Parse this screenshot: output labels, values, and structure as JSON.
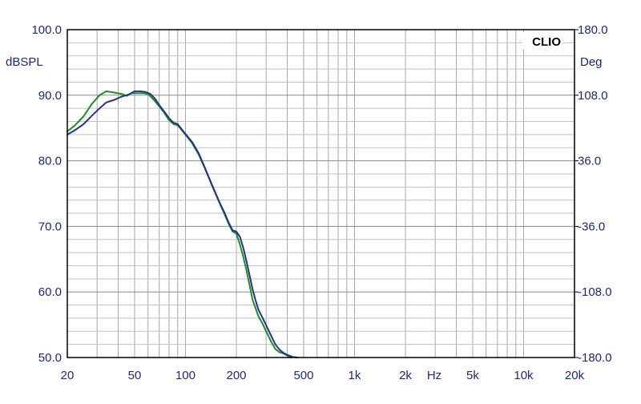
{
  "chart_data": {
    "type": "line",
    "brand": "CLIO",
    "ylabel_left": "dBSPL",
    "ylabel_right": "Deg",
    "x_unit_label": "Hz",
    "xscale": "log",
    "xlim": [
      20,
      20000
    ],
    "ylim": [
      50,
      100
    ],
    "ylim_right": [
      -180,
      180
    ],
    "grid": true,
    "x_ticks": [
      {
        "value": 20,
        "label": "20"
      },
      {
        "value": 50,
        "label": "50"
      },
      {
        "value": 100,
        "label": "100"
      },
      {
        "value": 200,
        "label": "200"
      },
      {
        "value": 500,
        "label": "500"
      },
      {
        "value": 1000,
        "label": "1k"
      },
      {
        "value": 2000,
        "label": "2k"
      },
      {
        "value": 5000,
        "label": "5k"
      },
      {
        "value": 10000,
        "label": "10k"
      },
      {
        "value": 20000,
        "label": "20k"
      }
    ],
    "y_ticks_left": [
      {
        "value": 100,
        "label": "100.0"
      },
      {
        "value": 90,
        "label": "90.0"
      },
      {
        "value": 80,
        "label": "80.0"
      },
      {
        "value": 70,
        "label": "70.0"
      },
      {
        "value": 60,
        "label": "60.0"
      },
      {
        "value": 50,
        "label": "50.0"
      }
    ],
    "y_ticks_right": [
      {
        "value": 180,
        "label": "180.0"
      },
      {
        "value": 108,
        "label": "108.0"
      },
      {
        "value": 36,
        "label": "36.0"
      },
      {
        "value": -36,
        "label": "-36.0"
      },
      {
        "value": -108,
        "label": "-108.0"
      },
      {
        "value": -180,
        "label": "-180.0"
      }
    ],
    "series": [
      {
        "color": "#1f8a2e",
        "points": [
          [
            20,
            84.5
          ],
          [
            22,
            85.3
          ],
          [
            25,
            86.8
          ],
          [
            28,
            88.7
          ],
          [
            31,
            90.0
          ],
          [
            34,
            90.6
          ],
          [
            38,
            90.4
          ],
          [
            42,
            90.2
          ],
          [
            45,
            89.9
          ],
          [
            48,
            90.3
          ],
          [
            52,
            90.3
          ],
          [
            56,
            90.3
          ],
          [
            60,
            90.2
          ],
          [
            65,
            89.3
          ],
          [
            70,
            88.3
          ],
          [
            75,
            87.3
          ],
          [
            80,
            86.2
          ],
          [
            85,
            85.6
          ],
          [
            90,
            85.4
          ],
          [
            95,
            84.7
          ],
          [
            100,
            84.0
          ],
          [
            110,
            82.6
          ],
          [
            120,
            80.9
          ],
          [
            130,
            78.9
          ],
          [
            140,
            76.9
          ],
          [
            150,
            75.1
          ],
          [
            160,
            73.4
          ],
          [
            170,
            71.9
          ],
          [
            180,
            70.4
          ],
          [
            190,
            69.2
          ],
          [
            200,
            68.9
          ],
          [
            210,
            67.2
          ],
          [
            220,
            65.3
          ],
          [
            230,
            63.2
          ],
          [
            240,
            60.9
          ],
          [
            250,
            58.7
          ],
          [
            260,
            57.5
          ],
          [
            270,
            56.3
          ],
          [
            285,
            55.2
          ],
          [
            300,
            54.0
          ],
          [
            320,
            52.5
          ],
          [
            340,
            51.3
          ],
          [
            360,
            50.8
          ],
          [
            380,
            50.6
          ],
          [
            400,
            50.3
          ],
          [
            420,
            50.0
          ]
        ]
      },
      {
        "color": "#27337f",
        "points": [
          [
            20,
            84.0
          ],
          [
            22,
            84.6
          ],
          [
            25,
            85.6
          ],
          [
            28,
            86.9
          ],
          [
            31,
            88.0
          ],
          [
            34,
            88.9
          ],
          [
            38,
            89.3
          ],
          [
            42,
            89.8
          ],
          [
            46,
            90.1
          ],
          [
            50,
            90.6
          ],
          [
            54,
            90.6
          ],
          [
            58,
            90.5
          ],
          [
            62,
            90.2
          ],
          [
            66,
            89.5
          ],
          [
            70,
            88.5
          ],
          [
            75,
            87.5
          ],
          [
            80,
            86.5
          ],
          [
            85,
            85.8
          ],
          [
            90,
            85.6
          ],
          [
            95,
            84.8
          ],
          [
            100,
            84.1
          ],
          [
            110,
            82.8
          ],
          [
            120,
            81.1
          ],
          [
            130,
            79.0
          ],
          [
            140,
            77.0
          ],
          [
            150,
            75.2
          ],
          [
            160,
            73.5
          ],
          [
            170,
            72.1
          ],
          [
            180,
            70.6
          ],
          [
            190,
            69.4
          ],
          [
            200,
            69.2
          ],
          [
            210,
            68.4
          ],
          [
            220,
            66.7
          ],
          [
            230,
            64.6
          ],
          [
            240,
            62.4
          ],
          [
            250,
            60.3
          ],
          [
            260,
            58.7
          ],
          [
            270,
            57.3
          ],
          [
            285,
            56.1
          ],
          [
            300,
            54.9
          ],
          [
            320,
            53.4
          ],
          [
            340,
            52.0
          ],
          [
            360,
            51.2
          ],
          [
            380,
            50.7
          ],
          [
            400,
            50.4
          ],
          [
            430,
            50.1
          ],
          [
            460,
            50.0
          ]
        ]
      }
    ]
  }
}
